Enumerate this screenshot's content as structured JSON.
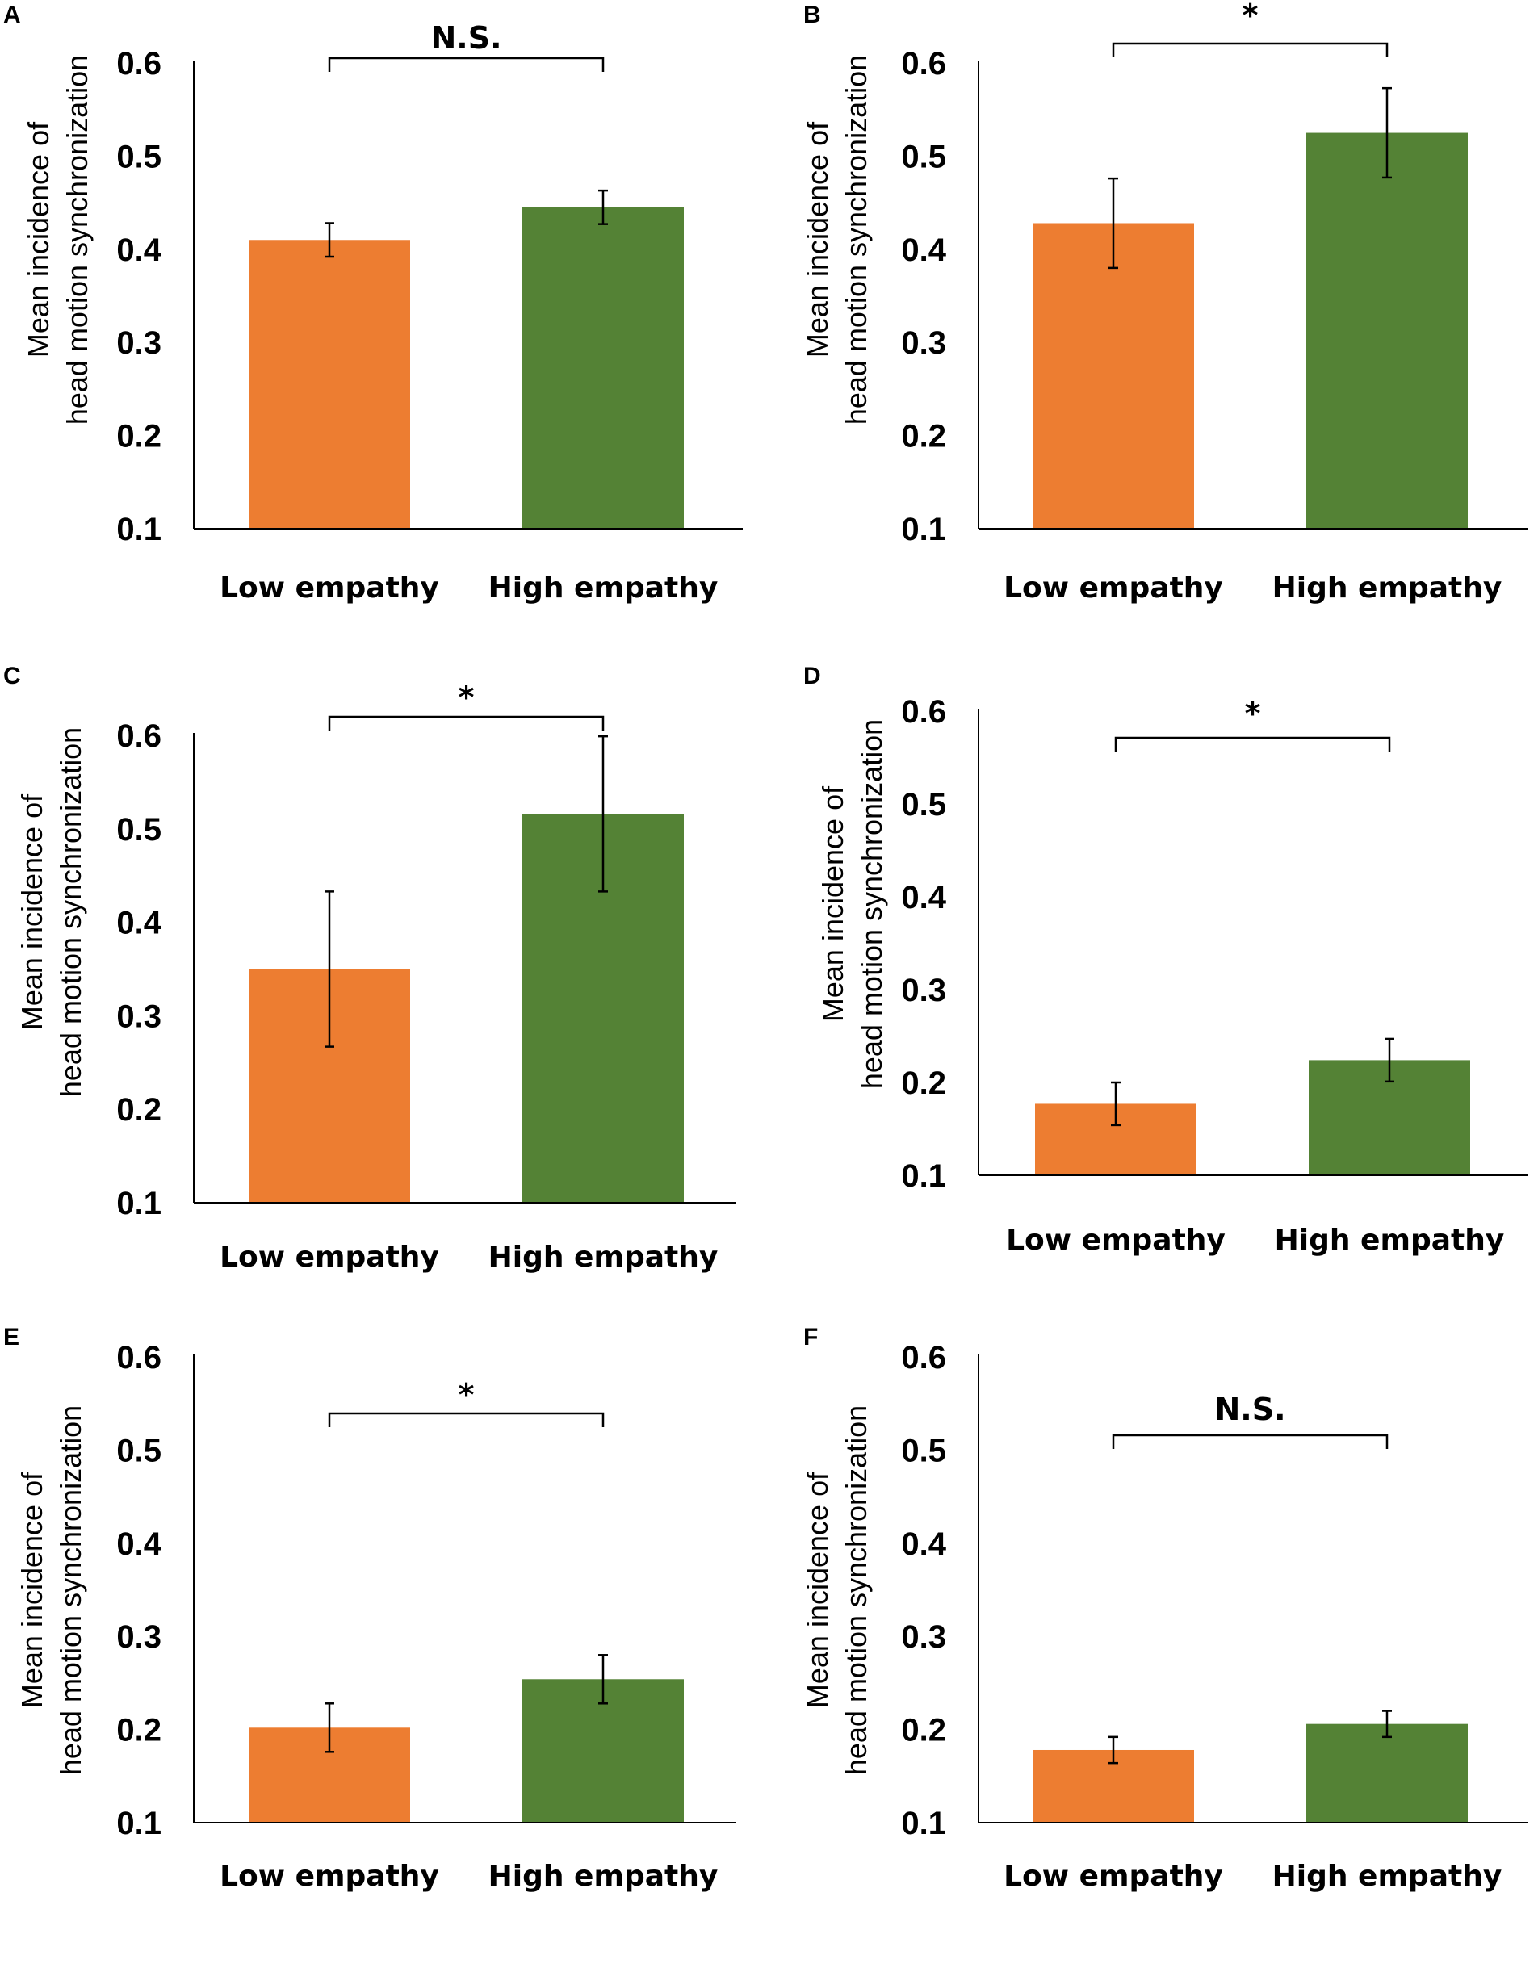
{
  "chart_data": [
    {
      "panel": "A",
      "type": "bar",
      "categories": [
        "Low empathy",
        "High empathy"
      ],
      "values": [
        0.41,
        0.445
      ],
      "errors": [
        0.018,
        0.018
      ],
      "ylim": [
        0.1,
        0.6
      ],
      "yticks": [
        "0.6",
        "0.5",
        "0.4",
        "0.3",
        "0.2",
        "0.1"
      ],
      "ylabel": [
        "Mean incidence of",
        "head motion synchronization"
      ],
      "significance": "N.S.",
      "colors": [
        "#ED7D31",
        "#548235"
      ]
    },
    {
      "panel": "B",
      "type": "bar",
      "categories": [
        "Low empathy",
        "High empathy"
      ],
      "values": [
        0.428,
        0.525
      ],
      "errors": [
        0.048,
        0.048
      ],
      "ylim": [
        0.1,
        0.6
      ],
      "yticks": [
        "0.6",
        "0.5",
        "0.4",
        "0.3",
        "0.2",
        "0.1"
      ],
      "ylabel": [
        "Mean incidence of",
        "head motion synchronization"
      ],
      "significance": "*",
      "colors": [
        "#ED7D31",
        "#548235"
      ]
    },
    {
      "panel": "C",
      "type": "bar",
      "categories": [
        "Low empathy",
        "High empathy"
      ],
      "values": [
        0.35,
        0.516
      ],
      "errors": [
        0.083,
        0.083
      ],
      "ylim": [
        0.1,
        0.6
      ],
      "yticks": [
        "0.6",
        "0.5",
        "0.4",
        "0.3",
        "0.2",
        "0.1"
      ],
      "ylabel": [
        "Mean incidence of",
        "head motion synchronization"
      ],
      "significance": "*",
      "colors": [
        "#ED7D31",
        "#548235"
      ]
    },
    {
      "panel": "D",
      "type": "bar",
      "categories": [
        "Low empathy",
        "High empathy"
      ],
      "values": [
        0.177,
        0.224
      ],
      "errors": [
        0.023,
        0.023
      ],
      "ylim": [
        0.1,
        0.6
      ],
      "yticks": [
        "0.6",
        "0.5",
        "0.4",
        "0.3",
        "0.2",
        "0.1"
      ],
      "ylabel": [
        "Mean incidence of",
        "head motion synchronization"
      ],
      "significance": "*",
      "colors": [
        "#ED7D31",
        "#548235"
      ]
    },
    {
      "panel": "E",
      "type": "bar",
      "categories": [
        "Low empathy",
        "High empathy"
      ],
      "values": [
        0.202,
        0.254
      ],
      "errors": [
        0.026,
        0.026
      ],
      "ylim": [
        0.1,
        0.6
      ],
      "yticks": [
        "0.6",
        "0.5",
        "0.4",
        "0.3",
        "0.2",
        "0.1"
      ],
      "ylabel": [
        "Mean incidence of",
        "head motion synchronization"
      ],
      "significance": "*",
      "colors": [
        "#ED7D31",
        "#548235"
      ]
    },
    {
      "panel": "F",
      "type": "bar",
      "categories": [
        "Low empathy",
        "High empathy"
      ],
      "values": [
        0.178,
        0.206
      ],
      "errors": [
        0.014,
        0.014
      ],
      "ylim": [
        0.1,
        0.6
      ],
      "yticks": [
        "0.6",
        "0.5",
        "0.4",
        "0.3",
        "0.2",
        "0.1"
      ],
      "ylabel": [
        "Mean incidence of",
        "head motion synchronization"
      ],
      "significance": "N.S.",
      "colors": [
        "#ED7D31",
        "#548235"
      ]
    }
  ]
}
